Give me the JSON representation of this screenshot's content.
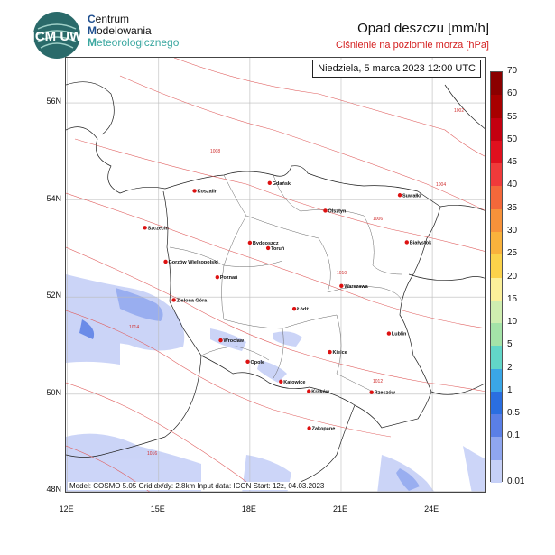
{
  "header": {
    "org_line1_initial": "C",
    "org_line1_rest": "entrum",
    "org_line2_initial": "M",
    "org_line2_rest": "odelowania",
    "org_line3_initial": "M",
    "org_line3_rest": "eteorologicznego",
    "logo_text": "ICM UW",
    "title": "Opad deszczu [mm/h]",
    "subtitle": "Ciśnienie na poziomie morza [hPa]"
  },
  "map": {
    "datetime": "Niedziela, 5 marca 2023 12:00 UTC",
    "footer": "Model: COSMO 5.05  Grid dx/dy: 2.8km  Input data: ICON  Start: 12z, 04.03.2023",
    "lat_labels": [
      {
        "text": "56N",
        "lat": 56
      },
      {
        "text": "54N",
        "lat": 54
      },
      {
        "text": "52N",
        "lat": 52
      },
      {
        "text": "50N",
        "lat": 50
      },
      {
        "text": "48N",
        "lat": 48
      }
    ],
    "lon_labels": [
      {
        "text": "12E",
        "lon": 12
      },
      {
        "text": "15E",
        "lon": 15
      },
      {
        "text": "18E",
        "lon": 18
      },
      {
        "text": "21E",
        "lon": 21
      },
      {
        "text": "24E",
        "lon": 24
      }
    ],
    "cities": [
      {
        "name": "Gdańsk",
        "lon": 18.65,
        "lat": 54.35
      },
      {
        "name": "Koszalin",
        "lon": 16.18,
        "lat": 54.19
      },
      {
        "name": "Olsztyn",
        "lon": 20.48,
        "lat": 53.78
      },
      {
        "name": "Suwałki",
        "lon": 22.93,
        "lat": 54.1
      },
      {
        "name": "Szczecin",
        "lon": 14.55,
        "lat": 53.43
      },
      {
        "name": "Bydgoszcz",
        "lon": 18.0,
        "lat": 53.12
      },
      {
        "name": "Toruń",
        "lon": 18.6,
        "lat": 53.01
      },
      {
        "name": "Białystok",
        "lon": 23.16,
        "lat": 53.13
      },
      {
        "name": "Gorzów Wielkopolski",
        "lon": 15.23,
        "lat": 52.73
      },
      {
        "name": "Poznań",
        "lon": 16.93,
        "lat": 52.41
      },
      {
        "name": "Warszawa",
        "lon": 21.01,
        "lat": 52.23
      },
      {
        "name": "Zielona Góra",
        "lon": 15.5,
        "lat": 51.94
      },
      {
        "name": "Łódź",
        "lon": 19.46,
        "lat": 51.76
      },
      {
        "name": "Lublin",
        "lon": 22.57,
        "lat": 51.25
      },
      {
        "name": "Wrocław",
        "lon": 17.04,
        "lat": 51.11
      },
      {
        "name": "Kielce",
        "lon": 20.63,
        "lat": 50.87
      },
      {
        "name": "Opole",
        "lon": 17.93,
        "lat": 50.67
      },
      {
        "name": "Katowice",
        "lon": 19.02,
        "lat": 50.26
      },
      {
        "name": "Kraków",
        "lon": 19.94,
        "lat": 50.06
      },
      {
        "name": "Rzeszów",
        "lon": 22.0,
        "lat": 50.04
      },
      {
        "name": "Zakopane",
        "lon": 19.95,
        "lat": 49.3
      }
    ],
    "isobar_labels": [
      "1002",
      "1004",
      "1006",
      "1008",
      "1010",
      "1012",
      "1014",
      "1016"
    ]
  },
  "legend": {
    "labels": [
      "70",
      "60",
      "55",
      "50",
      "45",
      "40",
      "35",
      "30",
      "25",
      "20",
      "15",
      "10",
      "5",
      "2",
      "1",
      "0.5",
      "0.1",
      "0.01"
    ],
    "colors": [
      "#8b0000",
      "#a80000",
      "#c40010",
      "#e0101e",
      "#f03a3a",
      "#f4683a",
      "#f7923a",
      "#f9b23c",
      "#fbd24a",
      "#fbf09a",
      "#cfeeb0",
      "#a4e3a8",
      "#62d6c8",
      "#3aa6e6",
      "#2a6ee0",
      "#5a7fe6",
      "#8fa6ef",
      "#c6d0f7"
    ]
  }
}
